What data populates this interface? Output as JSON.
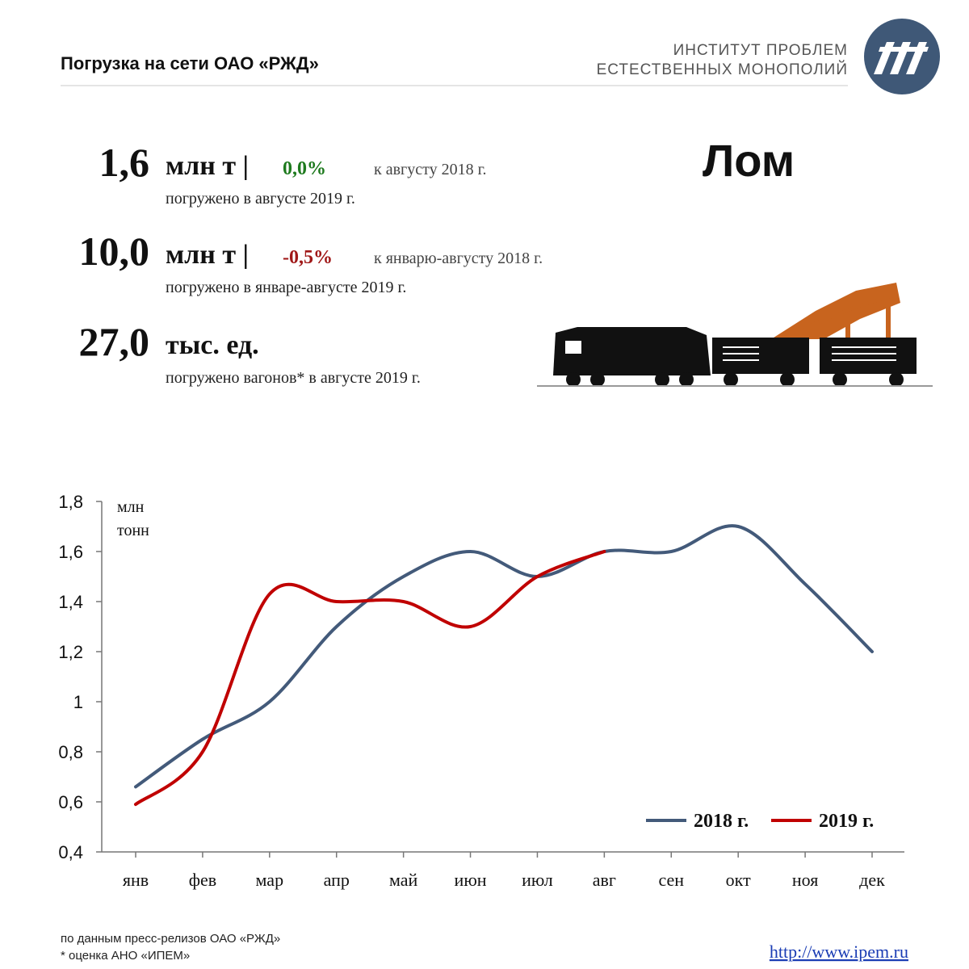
{
  "header": {
    "title": "Погрузка на сети ОАО «РЖД»",
    "org_lines": [
      "ИНСТИТУТ ПРОБЛЕМ",
      "ЕСТЕСТВЕННЫХ МОНОПОЛИЙ"
    ]
  },
  "cargo": "Лом",
  "stats": [
    {
      "value": "1,6",
      "unit": "млн т |",
      "change": "0,0%",
      "change_color": "#1e7a1e",
      "compare": "к августу 2018 г.",
      "note": "погружено в августе 2019 г."
    },
    {
      "value": "10,0",
      "unit": "млн т |",
      "change": "-0,5%",
      "change_color": "#a01818",
      "compare": "к январю-августу 2018 г.",
      "note": "погружено в январе-августе 2019 г."
    },
    {
      "value": "27,0",
      "unit": "тыс. ед.",
      "note": "погружено вагонов* в августе 2019 г."
    }
  ],
  "chart_data": {
    "type": "line",
    "y_label_lines": [
      "млн",
      "тонн"
    ],
    "categories": [
      "янв",
      "фев",
      "мар",
      "апр",
      "май",
      "июн",
      "июл",
      "авг",
      "сен",
      "окт",
      "ноя",
      "дек"
    ],
    "series": [
      {
        "name": "2018 г.",
        "color": "#435a7a",
        "values": [
          0.66,
          0.85,
          1.0,
          1.3,
          1.5,
          1.6,
          1.5,
          1.6,
          1.6,
          1.7,
          1.47,
          1.2
        ]
      },
      {
        "name": "2019 г.",
        "color": "#c00000",
        "values": [
          0.59,
          0.8,
          1.43,
          1.4,
          1.4,
          1.3,
          1.5,
          1.6,
          null,
          null,
          null,
          null
        ]
      }
    ],
    "ylim": [
      0.4,
      1.8
    ],
    "yticks": [
      {
        "value": 0.4,
        "label": "0,4"
      },
      {
        "value": 0.6,
        "label": "0,6"
      },
      {
        "value": 0.8,
        "label": "0,8"
      },
      1,
      {
        "value": 1.2,
        "label": "1,2"
      },
      {
        "value": 1.4,
        "label": "1,4"
      },
      {
        "value": 1.6,
        "label": "1,6"
      },
      {
        "value": 1.8,
        "label": "1,8"
      }
    ],
    "legend": "bottom-right"
  },
  "footer": {
    "sources": [
      "по данным  пресс-релизов ОАО «РЖД»",
      "* оценка АНО «ИПЕМ»"
    ],
    "link": "http://www.ipem.ru"
  }
}
